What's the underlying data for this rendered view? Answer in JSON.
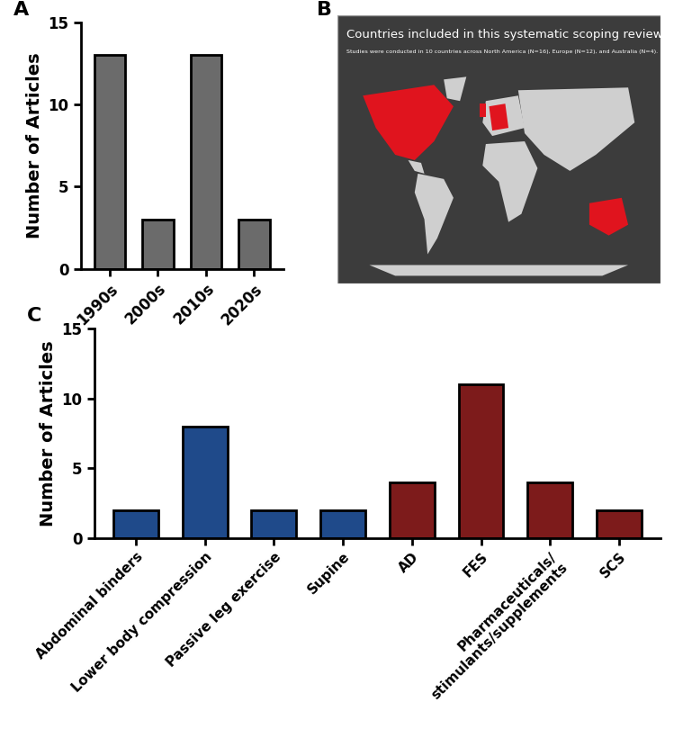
{
  "chart_data": [
    {
      "type": "bar",
      "panel_label": "A",
      "categories": [
        "1990s",
        "2000s",
        "2010s",
        "2020s"
      ],
      "values": [
        13,
        3,
        13,
        3
      ],
      "color": "#6b6b6b",
      "y_label": "Number of Articles",
      "ylim": [
        0,
        15
      ],
      "yticks": [
        0,
        5,
        10,
        15
      ],
      "grid": false
    },
    {
      "type": "map",
      "panel_label": "B",
      "title": "Countries included in this systematic scoping review",
      "subtitle": "Studies were conducted in 10 countries across North America (N=16), Europe (N=12), and Australia (N=4).",
      "color": "#e0141e"
    },
    {
      "type": "bar",
      "panel_label": "C",
      "categories": [
        "Abdominal binders",
        "Lower body compression",
        "Passive leg exercise",
        "Supine",
        "AD",
        "FES",
        "Pharmaceuticals/\nstimulants/supplements",
        "SCS"
      ],
      "values": [
        2,
        8,
        2,
        2,
        4,
        11,
        4,
        2
      ],
      "colors": [
        "#1f4a8a",
        "#1f4a8a",
        "#1f4a8a",
        "#1f4a8a",
        "#7d1b1b",
        "#7d1b1b",
        "#7d1b1b",
        "#7d1b1b"
      ],
      "y_label": "Number of Articles",
      "ylim": [
        0,
        15
      ],
      "yticks": [
        0,
        5,
        10,
        15
      ],
      "grid": false
    }
  ]
}
